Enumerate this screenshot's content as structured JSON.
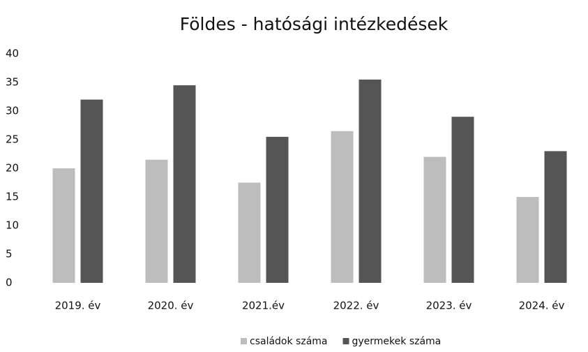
{
  "chart_data": {
    "type": "bar",
    "title": "Földes - hatósági intézkedések",
    "categories": [
      "2019. év",
      "2020. év",
      "2021.év",
      "2022. év",
      "2023. év",
      "2024. év"
    ],
    "series": [
      {
        "name": "családok száma",
        "color": "#bdbdbd",
        "values": [
          20,
          21.5,
          17.5,
          26.5,
          22,
          15
        ]
      },
      {
        "name": "gyermekek száma",
        "color": "#555555",
        "values": [
          32,
          34.5,
          25.5,
          35.5,
          29,
          23
        ]
      }
    ],
    "ylim": [
      0,
      40
    ],
    "yticks": [
      0,
      5,
      10,
      15,
      20,
      25,
      30,
      35,
      40
    ],
    "grid": false,
    "legend": "bottom"
  }
}
